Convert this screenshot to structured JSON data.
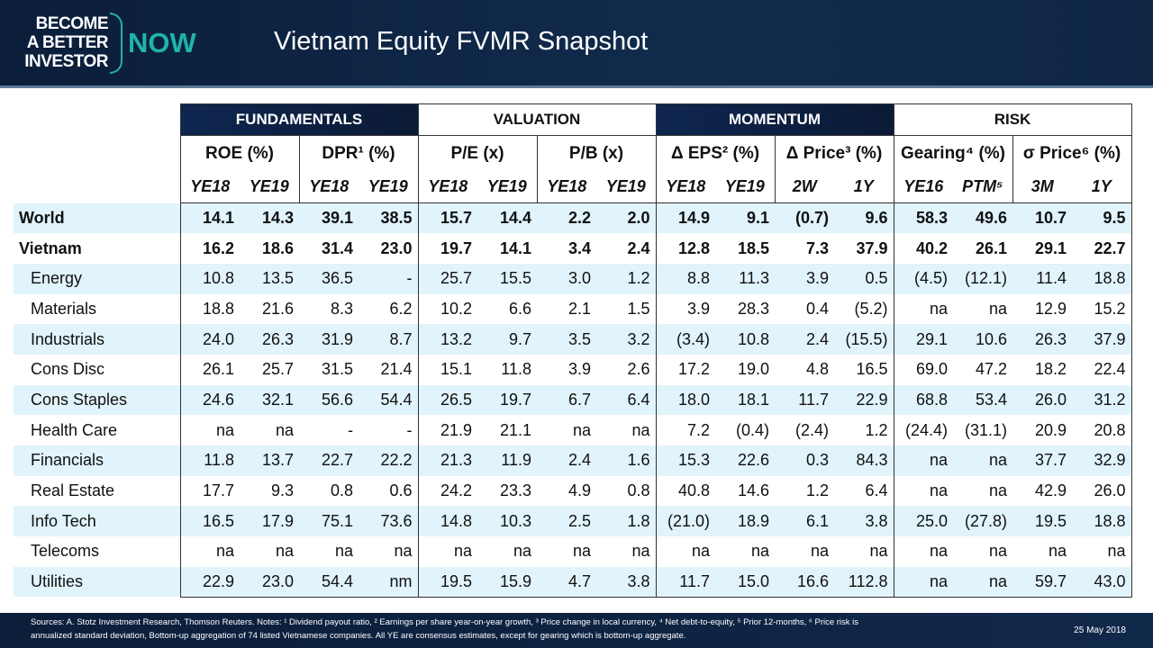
{
  "header": {
    "logo_lines": [
      "BECOME",
      "A BETTER",
      "INVESTOR"
    ],
    "logo_now": "NOW",
    "title": "Vietnam Equity FVMR Snapshot"
  },
  "groups": [
    "FUNDAMENTALS",
    "VALUATION",
    "MOMENTUM",
    "RISK"
  ],
  "metrics": [
    {
      "name": "ROE (%)",
      "sub": [
        "YE18",
        "YE19"
      ]
    },
    {
      "name": "DPR¹ (%)",
      "sub": [
        "YE18",
        "YE19"
      ]
    },
    {
      "name": "P/E (x)",
      "sub": [
        "YE18",
        "YE19"
      ]
    },
    {
      "name": "P/B (x)",
      "sub": [
        "YE18",
        "YE19"
      ]
    },
    {
      "name": "Δ EPS² (%)",
      "sub": [
        "YE18",
        "YE19"
      ]
    },
    {
      "name": "Δ Price³ (%)",
      "sub": [
        "2W",
        "1Y"
      ]
    },
    {
      "name": "Gearing⁴ (%)",
      "sub": [
        "YE16",
        "PTM⁵"
      ]
    },
    {
      "name": "σ Price⁶ (%)",
      "sub": [
        "3M",
        "1Y"
      ]
    }
  ],
  "rows": [
    {
      "label": "World",
      "values": [
        "14.1",
        "14.3",
        "39.1",
        "38.5",
        "15.7",
        "14.4",
        "2.2",
        "2.0",
        "14.9",
        "9.1",
        "(0.7)",
        "9.6",
        "58.3",
        "49.6",
        "10.7",
        "9.5"
      ]
    },
    {
      "label": "Vietnam",
      "values": [
        "16.2",
        "18.6",
        "31.4",
        "23.0",
        "19.7",
        "14.1",
        "3.4",
        "2.4",
        "12.8",
        "18.5",
        "7.3",
        "37.9",
        "40.2",
        "26.1",
        "29.1",
        "22.7"
      ]
    },
    {
      "label": "Energy",
      "values": [
        "10.8",
        "13.5",
        "36.5",
        "-",
        "25.7",
        "15.5",
        "3.0",
        "1.2",
        "8.8",
        "11.3",
        "3.9",
        "0.5",
        "(4.5)",
        "(12.1)",
        "11.4",
        "18.8"
      ]
    },
    {
      "label": "Materials",
      "values": [
        "18.8",
        "21.6",
        "8.3",
        "6.2",
        "10.2",
        "6.6",
        "2.1",
        "1.5",
        "3.9",
        "28.3",
        "0.4",
        "(5.2)",
        "na",
        "na",
        "12.9",
        "15.2"
      ]
    },
    {
      "label": "Industrials",
      "values": [
        "24.0",
        "26.3",
        "31.9",
        "8.7",
        "13.2",
        "9.7",
        "3.5",
        "3.2",
        "(3.4)",
        "10.8",
        "2.4",
        "(15.5)",
        "29.1",
        "10.6",
        "26.3",
        "37.9"
      ]
    },
    {
      "label": "Cons Disc",
      "values": [
        "26.1",
        "25.7",
        "31.5",
        "21.4",
        "15.1",
        "11.8",
        "3.9",
        "2.6",
        "17.2",
        "19.0",
        "4.8",
        "16.5",
        "69.0",
        "47.2",
        "18.2",
        "22.4"
      ]
    },
    {
      "label": "Cons Staples",
      "values": [
        "24.6",
        "32.1",
        "56.6",
        "54.4",
        "26.5",
        "19.7",
        "6.7",
        "6.4",
        "18.0",
        "18.1",
        "11.7",
        "22.9",
        "68.8",
        "53.4",
        "26.0",
        "31.2"
      ]
    },
    {
      "label": "Health Care",
      "values": [
        "na",
        "na",
        "-",
        "-",
        "21.9",
        "21.1",
        "na",
        "na",
        "7.2",
        "(0.4)",
        "(2.4)",
        "1.2",
        "(24.4)",
        "(31.1)",
        "20.9",
        "20.8"
      ]
    },
    {
      "label": "Financials",
      "values": [
        "11.8",
        "13.7",
        "22.7",
        "22.2",
        "21.3",
        "11.9",
        "2.4",
        "1.6",
        "15.3",
        "22.6",
        "0.3",
        "84.3",
        "na",
        "na",
        "37.7",
        "32.9"
      ]
    },
    {
      "label": "Real Estate",
      "values": [
        "17.7",
        "9.3",
        "0.8",
        "0.6",
        "24.2",
        "23.3",
        "4.9",
        "0.8",
        "40.8",
        "14.6",
        "1.2",
        "6.4",
        "na",
        "na",
        "42.9",
        "26.0"
      ]
    },
    {
      "label": "Info Tech",
      "values": [
        "16.5",
        "17.9",
        "75.1",
        "73.6",
        "14.8",
        "10.3",
        "2.5",
        "1.8",
        "(21.0)",
        "18.9",
        "6.1",
        "3.8",
        "25.0",
        "(27.8)",
        "19.5",
        "18.8"
      ]
    },
    {
      "label": "Telecoms",
      "values": [
        "na",
        "na",
        "na",
        "na",
        "na",
        "na",
        "na",
        "na",
        "na",
        "na",
        "na",
        "na",
        "na",
        "na",
        "na",
        "na"
      ]
    },
    {
      "label": "Utilities",
      "values": [
        "22.9",
        "23.0",
        "54.4",
        "nm",
        "19.5",
        "15.9",
        "4.7",
        "3.8",
        "11.7",
        "15.0",
        "16.6",
        "112.8",
        "na",
        "na",
        "59.7",
        "43.0"
      ]
    }
  ],
  "footer": {
    "notes_line1": "Sources: A. Stotz Investment Research, Thomson Reuters. Notes: ¹ Dividend payout ratio, ² Earnings per share year-on-year growth, ³ Price change in local currency, ⁴ Net debt-to-equity, ⁵ Prior 12-months, ⁶ Price risk is",
    "notes_line2": "annualized standard deviation, Bottom-up aggregation of 74 listed Vietnamese companies. All YE are consensus estimates, except for gearing which is bottom-up aggregate.",
    "date": "25 May 2018"
  }
}
